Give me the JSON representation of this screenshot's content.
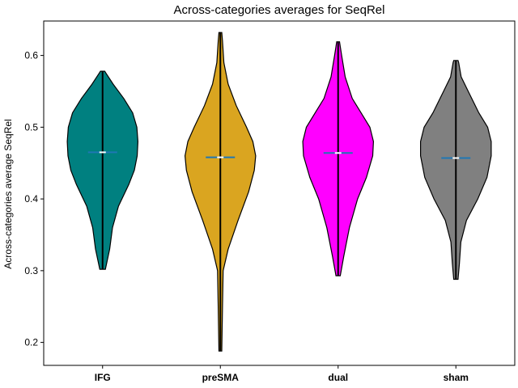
{
  "chart_data": {
    "type": "violin",
    "title": "Across-categories averages for SeqRel",
    "xlabel": "",
    "ylabel": "Across-categories average SeqRel",
    "ylim": [
      0.168,
      0.648
    ],
    "yticks": [
      0.2,
      0.3,
      0.4,
      0.5,
      0.6
    ],
    "ytick_labels": [
      "0.2",
      "0.3",
      "0.4",
      "0.5",
      "0.6"
    ],
    "grid": false,
    "categories": [
      "IFG",
      "preSMA",
      "dual",
      "sham"
    ],
    "series": [
      {
        "name": "IFG",
        "color": "#008080",
        "min": 0.302,
        "max": 0.578,
        "median": 0.465,
        "profile": [
          [
            0.302,
            0.08
          ],
          [
            0.33,
            0.2
          ],
          [
            0.36,
            0.28
          ],
          [
            0.39,
            0.45
          ],
          [
            0.42,
            0.74
          ],
          [
            0.44,
            0.9
          ],
          [
            0.46,
            0.98
          ],
          [
            0.48,
            1.0
          ],
          [
            0.5,
            0.97
          ],
          [
            0.52,
            0.85
          ],
          [
            0.54,
            0.6
          ],
          [
            0.56,
            0.3
          ],
          [
            0.575,
            0.1
          ],
          [
            0.578,
            0.06
          ]
        ]
      },
      {
        "name": "preSMA",
        "color": "#DAA520",
        "min": 0.188,
        "max": 0.632,
        "median": 0.458,
        "profile": [
          [
            0.188,
            0.04
          ],
          [
            0.25,
            0.06
          ],
          [
            0.3,
            0.08
          ],
          [
            0.33,
            0.22
          ],
          [
            0.37,
            0.5
          ],
          [
            0.41,
            0.8
          ],
          [
            0.44,
            0.96
          ],
          [
            0.46,
            1.0
          ],
          [
            0.48,
            0.92
          ],
          [
            0.5,
            0.74
          ],
          [
            0.53,
            0.45
          ],
          [
            0.56,
            0.22
          ],
          [
            0.59,
            0.1
          ],
          [
            0.62,
            0.06
          ],
          [
            0.632,
            0.04
          ]
        ]
      },
      {
        "name": "dual",
        "color": "#FF00FF",
        "min": 0.293,
        "max": 0.619,
        "median": 0.464,
        "profile": [
          [
            0.293,
            0.06
          ],
          [
            0.32,
            0.16
          ],
          [
            0.36,
            0.32
          ],
          [
            0.4,
            0.55
          ],
          [
            0.43,
            0.8
          ],
          [
            0.46,
            0.98
          ],
          [
            0.48,
            1.0
          ],
          [
            0.5,
            0.9
          ],
          [
            0.52,
            0.65
          ],
          [
            0.54,
            0.4
          ],
          [
            0.57,
            0.2
          ],
          [
            0.6,
            0.1
          ],
          [
            0.619,
            0.04
          ]
        ]
      },
      {
        "name": "sham",
        "color": "#808080",
        "min": 0.288,
        "max": 0.593,
        "median": 0.457,
        "profile": [
          [
            0.288,
            0.06
          ],
          [
            0.31,
            0.1
          ],
          [
            0.34,
            0.14
          ],
          [
            0.37,
            0.3
          ],
          [
            0.4,
            0.62
          ],
          [
            0.43,
            0.88
          ],
          [
            0.46,
            1.0
          ],
          [
            0.48,
            1.0
          ],
          [
            0.5,
            0.9
          ],
          [
            0.52,
            0.65
          ],
          [
            0.55,
            0.35
          ],
          [
            0.57,
            0.15
          ],
          [
            0.59,
            0.08
          ],
          [
            0.593,
            0.06
          ]
        ]
      }
    ]
  }
}
